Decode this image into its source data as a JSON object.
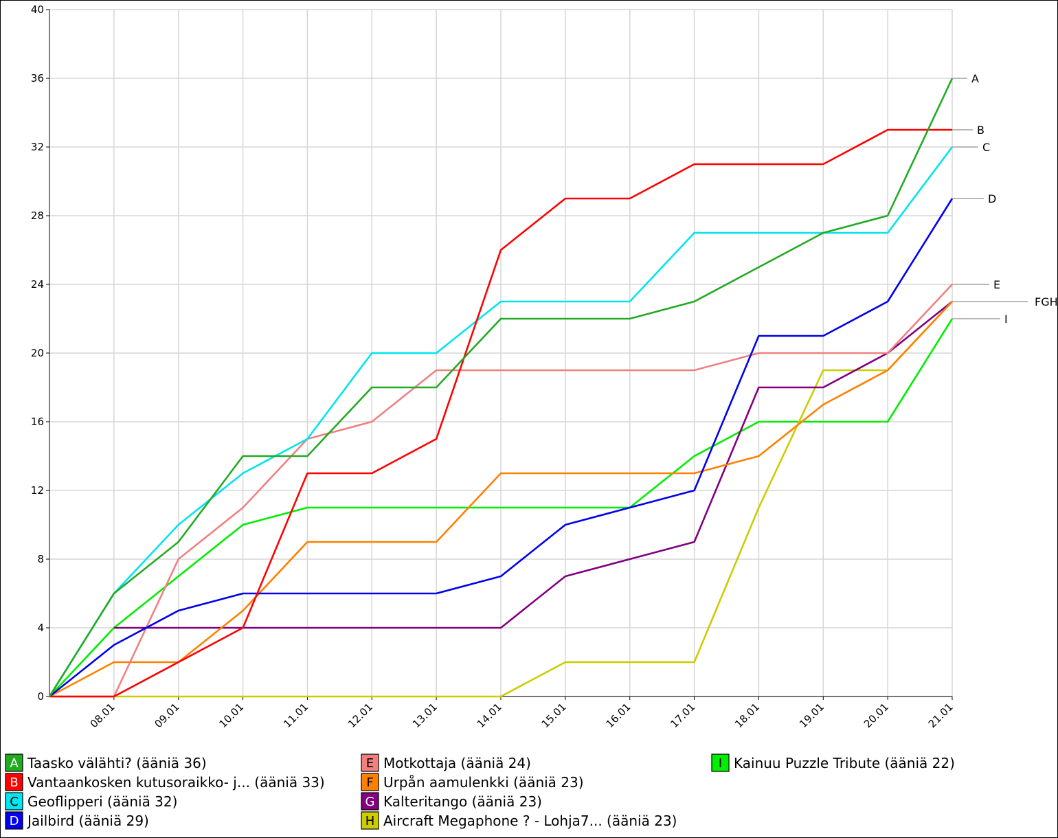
{
  "chart_data": {
    "type": "line",
    "title": "",
    "xlabel": "",
    "ylabel": "",
    "ylim": [
      0,
      40
    ],
    "yticks": [
      0,
      4,
      8,
      12,
      16,
      20,
      24,
      28,
      32,
      36,
      40
    ],
    "grid": true,
    "legend_position": "bottom",
    "x": [
      "",
      "08.01",
      "09.01",
      "10.01",
      "11.01",
      "12.01",
      "13.01",
      "14.01",
      "15.01",
      "16.01",
      "17.01",
      "18.01",
      "19.01",
      "20.01",
      "21.01"
    ],
    "series": [
      {
        "key": "A",
        "name": "Taasko välähti? (ääniä 36)",
        "color": "#22aa22",
        "values": [
          0,
          6,
          9,
          14,
          14,
          18,
          18,
          22,
          22,
          22,
          23,
          25,
          27,
          28,
          36
        ]
      },
      {
        "key": "B",
        "name": "Vantaankosken kutusoraikko- j... (ääniä 33)",
        "color": "#ff0000",
        "values": [
          0,
          0,
          2,
          4,
          13,
          13,
          15,
          26,
          29,
          29,
          31,
          31,
          31,
          33,
          33
        ]
      },
      {
        "key": "C",
        "name": "Geoflipperi (ääniä 32)",
        "color": "#00e5ee",
        "values": [
          0,
          6,
          10,
          13,
          15,
          20,
          20,
          23,
          23,
          23,
          27,
          27,
          27,
          27,
          32
        ]
      },
      {
        "key": "D",
        "name": "Jailbird (ääniä 29)",
        "color": "#0000ee",
        "values": [
          0,
          3,
          5,
          6,
          6,
          6,
          6,
          7,
          10,
          11,
          12,
          21,
          21,
          23,
          29
        ]
      },
      {
        "key": "E",
        "name": "Motkottaja (ääniä 24)",
        "color": "#f08080",
        "values": [
          0,
          0,
          8,
          11,
          15,
          16,
          19,
          19,
          19,
          19,
          19,
          20,
          20,
          20,
          24
        ]
      },
      {
        "key": "F",
        "name": "Urpån aamulenkki (ääniä 23)",
        "color": "#ff8000",
        "values": [
          0,
          2,
          2,
          5,
          9,
          9,
          9,
          13,
          13,
          13,
          13,
          14,
          17,
          19,
          23
        ]
      },
      {
        "key": "G",
        "name": "Kalteritango (ääniä 23)",
        "color": "#800080",
        "values": [
          null,
          4,
          4,
          4,
          4,
          4,
          4,
          4,
          7,
          8,
          9,
          18,
          18,
          20,
          23
        ]
      },
      {
        "key": "H",
        "name": "Aircraft Megaphone ? - Lohja7... (ääniä 23)",
        "color": "#cccc00",
        "values": [
          0,
          0,
          0,
          0,
          0,
          0,
          0,
          0,
          2,
          2,
          2,
          11,
          19,
          19,
          23
        ]
      },
      {
        "key": "I",
        "name": "Kainuu Puzzle Tribute (ääniä 22)",
        "color": "#00ee00",
        "values": [
          0,
          4,
          7,
          10,
          11,
          11,
          11,
          11,
          11,
          11,
          14,
          16,
          16,
          16,
          22
        ]
      }
    ],
    "end_labels": [
      {
        "text": "A",
        "value": 36
      },
      {
        "text": "B",
        "value": 33
      },
      {
        "text": "C",
        "value": 32
      },
      {
        "text": "D",
        "value": 29
      },
      {
        "text": "E",
        "value": 24
      },
      {
        "text": "FGH",
        "value": 23
      },
      {
        "text": "I",
        "value": 22
      }
    ]
  }
}
